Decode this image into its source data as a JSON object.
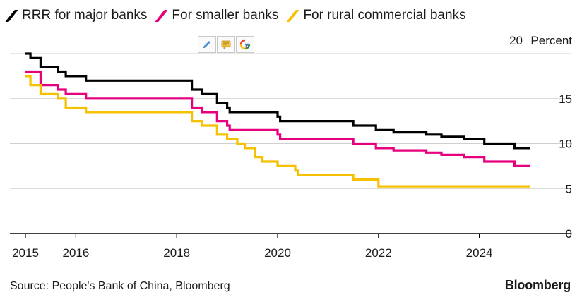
{
  "chart_data": {
    "type": "line",
    "title": "",
    "xlabel": "",
    "ylabel": "Percent",
    "ylim": [
      0,
      20
    ],
    "xlim": [
      2014.9,
      2025.95
    ],
    "yticks": [
      0,
      5,
      10,
      15,
      20
    ],
    "xticks": [
      2015,
      2016,
      2018,
      2020,
      2022,
      2024
    ],
    "grid": "horizontal",
    "legend_position": "top-left",
    "step": true,
    "series": [
      {
        "name": "RRR for major banks",
        "color": "#000000",
        "points": [
          [
            2015.0,
            20.0
          ],
          [
            2015.1,
            19.5
          ],
          [
            2015.3,
            18.5
          ],
          [
            2015.65,
            18.0
          ],
          [
            2015.8,
            17.5
          ],
          [
            2016.2,
            17.0
          ],
          [
            2018.3,
            16.0
          ],
          [
            2018.5,
            15.5
          ],
          [
            2018.8,
            14.5
          ],
          [
            2019.0,
            14.0
          ],
          [
            2019.05,
            13.5
          ],
          [
            2020.0,
            13.0
          ],
          [
            2020.05,
            12.5
          ],
          [
            2021.5,
            12.0
          ],
          [
            2021.95,
            11.5
          ],
          [
            2022.3,
            11.25
          ],
          [
            2022.95,
            11.0
          ],
          [
            2023.25,
            10.75
          ],
          [
            2023.7,
            10.5
          ],
          [
            2024.1,
            10.0
          ],
          [
            2024.7,
            9.5
          ],
          [
            2025.0,
            9.5
          ]
        ]
      },
      {
        "name": "For smaller banks",
        "color": "#e6007e",
        "points": [
          [
            2015.0,
            18.0
          ],
          [
            2015.3,
            16.5
          ],
          [
            2015.65,
            16.0
          ],
          [
            2015.8,
            15.5
          ],
          [
            2016.2,
            15.0
          ],
          [
            2018.3,
            14.0
          ],
          [
            2018.5,
            13.5
          ],
          [
            2018.8,
            12.5
          ],
          [
            2019.0,
            12.0
          ],
          [
            2019.05,
            11.5
          ],
          [
            2020.0,
            11.0
          ],
          [
            2020.05,
            10.5
          ],
          [
            2021.5,
            10.0
          ],
          [
            2021.95,
            9.5
          ],
          [
            2022.3,
            9.25
          ],
          [
            2022.95,
            9.0
          ],
          [
            2023.25,
            8.75
          ],
          [
            2023.7,
            8.5
          ],
          [
            2024.1,
            8.0
          ],
          [
            2024.7,
            7.5
          ],
          [
            2025.0,
            7.5
          ]
        ]
      },
      {
        "name": "For rural commercial banks",
        "color": "#f5c100",
        "points": [
          [
            2015.0,
            17.5
          ],
          [
            2015.1,
            16.5
          ],
          [
            2015.3,
            15.5
          ],
          [
            2015.65,
            15.0
          ],
          [
            2015.8,
            14.0
          ],
          [
            2016.2,
            13.5
          ],
          [
            2018.3,
            12.5
          ],
          [
            2018.5,
            12.0
          ],
          [
            2018.8,
            11.0
          ],
          [
            2019.0,
            10.5
          ],
          [
            2019.2,
            10.0
          ],
          [
            2019.35,
            9.5
          ],
          [
            2019.55,
            8.5
          ],
          [
            2019.7,
            8.0
          ],
          [
            2020.0,
            7.5
          ],
          [
            2020.35,
            7.0
          ],
          [
            2020.4,
            6.5
          ],
          [
            2021.5,
            6.0
          ],
          [
            2022.0,
            5.25
          ],
          [
            2025.0,
            5.25
          ]
        ]
      }
    ],
    "y_unit_label": "Percent"
  },
  "source": "Source: People's Bank of China, Bloomberg",
  "brand": "Bloomberg",
  "toolbar": {
    "icons": [
      "pencil-icon",
      "comment-icon",
      "google-lens-icon"
    ]
  },
  "colors": {
    "grid": "#cfcfcf",
    "axis": "#000000",
    "text": "#1a1a1a"
  }
}
